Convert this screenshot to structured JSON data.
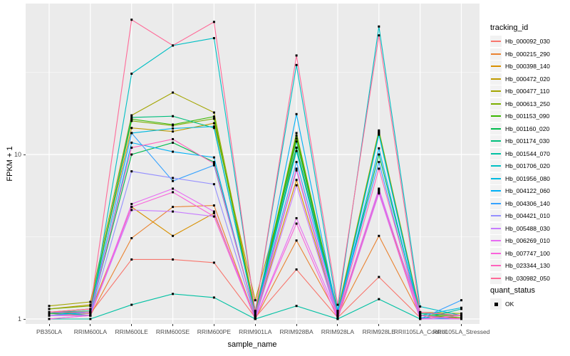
{
  "chart": {
    "type": "line",
    "xlabel": "sample_name",
    "ylabel": "FPKM + 1",
    "y_scale": "log10",
    "panel_bg": "#EBEBEB",
    "grid_color": "#FFFFFF",
    "point_color": "#000000",
    "key_bg": "#F2F2F2",
    "legend_title": "tracking_id",
    "quant_legend": {
      "title": "quant_status",
      "items": [
        "OK"
      ]
    },
    "y_ticks": [
      {
        "label": "1",
        "value": 1
      },
      {
        "label": "10",
        "value": 10
      }
    ],
    "y_minor": [
      3.162,
      31.62
    ],
    "ylim": [
      0.93,
      83
    ],
    "x_categories": [
      "PB350LA",
      "RRIM600LA",
      "RRIM600LE",
      "RRIM600SE",
      "RRIM600PE",
      "RRIM901LA",
      "RRIM928BA",
      "RRIM928LA",
      "RRIM928LE",
      "RRII105LA_Control",
      "RRII105LA_Stressed"
    ],
    "series": [
      {
        "name": "Hb_000092_030",
        "color": "#F8766D",
        "values": [
          1.05,
          1.08,
          2.3,
          2.3,
          2.2,
          1.02,
          2.0,
          1.02,
          1.8,
          1.02,
          1.02
        ]
      },
      {
        "name": "Hb_000215_290",
        "color": "#EA8331",
        "values": [
          1.08,
          1.05,
          3.1,
          4.8,
          4.9,
          1.0,
          3.0,
          1.05,
          3.2,
          1.05,
          1.02
        ]
      },
      {
        "name": "Hb_000398_140",
        "color": "#D89000",
        "values": [
          1.1,
          1.1,
          4.8,
          3.2,
          4.4,
          1.02,
          7.0,
          1.02,
          6.1,
          1.0,
          1.05
        ]
      },
      {
        "name": "Hb_000472_020",
        "color": "#C09B00",
        "values": [
          1.15,
          1.22,
          14.5,
          13.8,
          15.5,
          1.3,
          11.0,
          1.1,
          13.6,
          1.08,
          1.05
        ]
      },
      {
        "name": "Hb_000477_110",
        "color": "#A3A500",
        "values": [
          1.2,
          1.27,
          17.3,
          23.8,
          18.0,
          1.12,
          12.5,
          1.12,
          14.0,
          1.1,
          1.08
        ]
      },
      {
        "name": "Hb_000613_250",
        "color": "#7CAE00",
        "values": [
          1.15,
          1.2,
          16.0,
          15.0,
          16.5,
          1.08,
          13.5,
          1.08,
          13.8,
          1.05,
          1.05
        ]
      },
      {
        "name": "Hb_001153_090",
        "color": "#39B600",
        "values": [
          1.1,
          1.15,
          16.4,
          15.2,
          17.0,
          1.05,
          13.0,
          1.05,
          13.5,
          1.05,
          1.02
        ]
      },
      {
        "name": "Hb_001160_020",
        "color": "#00BB4E",
        "values": [
          1.08,
          1.1,
          10.0,
          11.8,
          9.0,
          1.05,
          11.0,
          1.05,
          10.0,
          1.05,
          1.0
        ]
      },
      {
        "name": "Hb_001174_030",
        "color": "#00BF7D",
        "values": [
          1.1,
          1.12,
          16.8,
          17.1,
          14.5,
          1.05,
          12.0,
          1.08,
          13.4,
          1.08,
          1.05
        ]
      },
      {
        "name": "Hb_001544_070",
        "color": "#00C1A3",
        "values": [
          1.0,
          1.0,
          1.22,
          1.42,
          1.35,
          1.0,
          1.2,
          1.0,
          1.32,
          1.0,
          1.15
        ]
      },
      {
        "name": "Hb_001706_020",
        "color": "#00BFC4",
        "values": [
          1.1,
          1.05,
          31.0,
          46.0,
          51.0,
          1.12,
          35.0,
          1.12,
          60.0,
          1.19,
          1.05
        ]
      },
      {
        "name": "Hb_001956_080",
        "color": "#00BAE0",
        "values": [
          1.05,
          1.1,
          13.5,
          14.4,
          14.8,
          1.05,
          10.5,
          1.05,
          13.2,
          1.05,
          1.17
        ]
      },
      {
        "name": "Hb_004122_060",
        "color": "#00B0F6",
        "values": [
          1.05,
          1.05,
          11.8,
          10.4,
          9.6,
          1.02,
          17.6,
          1.05,
          10.9,
          1.02,
          1.0
        ]
      },
      {
        "name": "Hb_004306_140",
        "color": "#35A2FF",
        "values": [
          1.05,
          1.1,
          13.5,
          6.9,
          8.6,
          1.05,
          9.0,
          1.1,
          9.0,
          1.0,
          1.3
        ]
      },
      {
        "name": "Hb_004421_010",
        "color": "#9590FF",
        "values": [
          1.0,
          1.05,
          7.9,
          7.2,
          6.6,
          1.02,
          8.0,
          1.0,
          6.0,
          1.1,
          1.05
        ]
      },
      {
        "name": "Hb_005488_030",
        "color": "#C77CFF",
        "values": [
          1.05,
          1.05,
          4.6,
          4.5,
          4.2,
          1.0,
          6.5,
          1.0,
          5.8,
          1.0,
          1.0
        ]
      },
      {
        "name": "Hb_006269_010",
        "color": "#E76BF3",
        "values": [
          1.05,
          1.05,
          5.0,
          6.2,
          4.5,
          1.0,
          4.1,
          1.05,
          6.2,
          1.05,
          1.0
        ]
      },
      {
        "name": "Hb_007747_100",
        "color": "#FA62DB",
        "values": [
          1.0,
          1.05,
          4.8,
          5.9,
          4.2,
          1.0,
          3.8,
          1.0,
          5.9,
          1.0,
          1.05
        ]
      },
      {
        "name": "Hb_023344_130",
        "color": "#FF62BC",
        "values": [
          1.1,
          1.1,
          11.0,
          12.4,
          8.8,
          1.05,
          8.2,
          1.05,
          8.2,
          1.05,
          1.0
        ]
      },
      {
        "name": "Hb_030982_050",
        "color": "#FF6A98",
        "values": [
          1.1,
          1.15,
          66.0,
          46.0,
          64.0,
          1.1,
          40.0,
          1.22,
          53.0,
          1.1,
          1.05
        ]
      }
    ]
  },
  "chart_data": {
    "type": "line",
    "title": "",
    "xlabel": "sample_name",
    "ylabel": "FPKM + 1",
    "y_scale": "log10",
    "ylim": [
      0.93,
      83
    ],
    "legend_position": "right",
    "legend_title": "tracking_id",
    "grid": true,
    "categories": [
      "PB350LA",
      "RRIM600LA",
      "RRIM600LE",
      "RRIM600SE",
      "RRIM600PE",
      "RRIM901LA",
      "RRIM928BA",
      "RRIM928LA",
      "RRIM928LE",
      "RRII105LA_Control",
      "RRII105LA_Stressed"
    ],
    "series_note": "see chart.series for the 20 tracking_id series values (FPKM+1, estimated from log axis)",
    "quant_status": [
      "OK"
    ]
  }
}
